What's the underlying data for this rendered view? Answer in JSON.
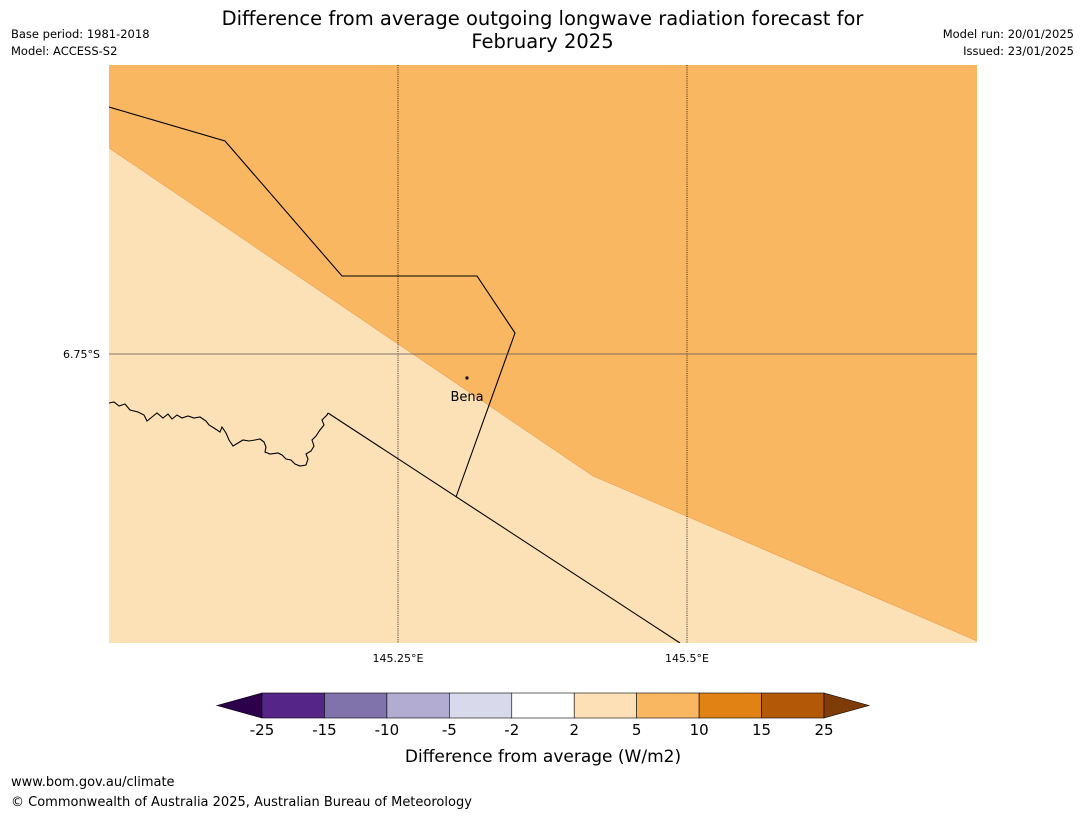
{
  "header": {
    "title_line1": "Difference from average outgoing longwave radiation forecast for",
    "title_line2": "February 2025",
    "base_period": "Base period: 1981-2018",
    "model": "Model: ACCESS-S2",
    "model_run": "Model run: 20/01/2025",
    "issued": "Issued: 23/01/2025"
  },
  "map": {
    "lat_labels": [
      "6.75°S"
    ],
    "lon_labels": [
      "145.25°E",
      "145.5°E"
    ],
    "places": [
      {
        "name": "Bena"
      }
    ],
    "region_fills": [
      {
        "category": "5 to 10",
        "color": "#fab762"
      },
      {
        "category": "2 to 5",
        "color": "#fce0b6"
      }
    ]
  },
  "colorbar": {
    "label": "Difference from average (W/m2)",
    "ticks": [
      "-25",
      "-15",
      "-10",
      "-5",
      "-2",
      "2",
      "5",
      "10",
      "15",
      "25"
    ],
    "colors": [
      "#552688",
      "#8073ac",
      "#b2abd2",
      "#d8daeb",
      "#ffffff",
      "#fde0b6",
      "#fab762",
      "#e08214",
      "#b35806"
    ],
    "extend_low_color": "#2d004b",
    "extend_high_color": "#7f3b08"
  },
  "footer": {
    "url": "www.bom.gov.au/climate",
    "copyright": "© Commonwealth of Australia 2025, Australian Bureau of Meteorology"
  }
}
